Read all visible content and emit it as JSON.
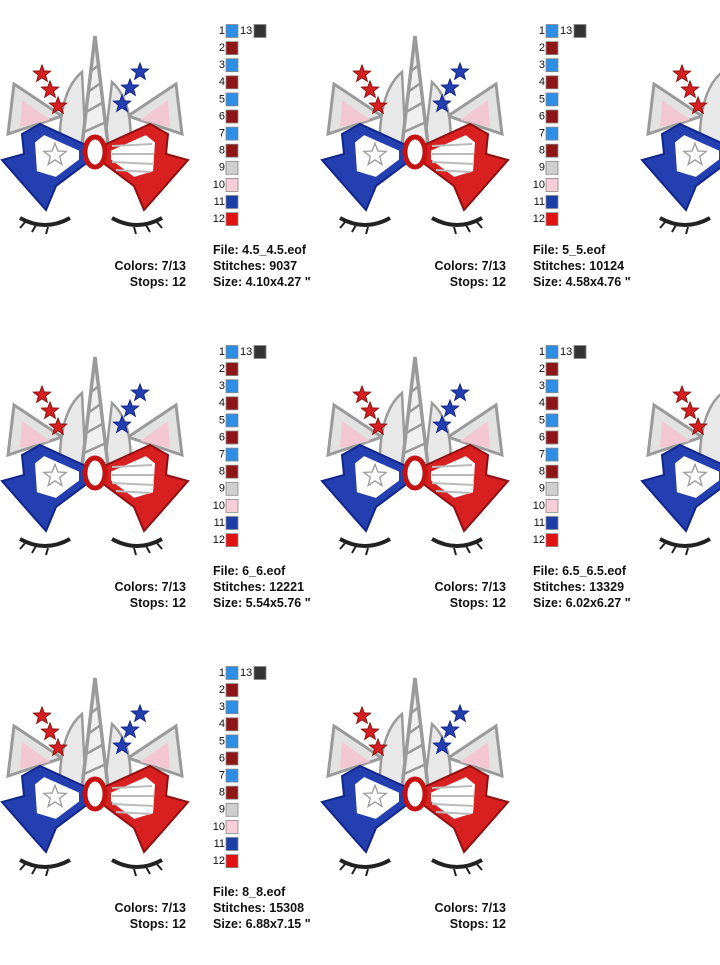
{
  "palette": [
    {
      "number": "1",
      "color": "#2e8de4"
    },
    {
      "number": "2",
      "color": "#8e1616"
    },
    {
      "number": "3",
      "color": "#2e8de4"
    },
    {
      "number": "4",
      "color": "#8e1616"
    },
    {
      "number": "5",
      "color": "#2e8de4"
    },
    {
      "number": "6",
      "color": "#8e1616"
    },
    {
      "number": "7",
      "color": "#2e8de4"
    },
    {
      "number": "8",
      "color": "#8e1616"
    },
    {
      "number": "9",
      "color": "#cfcfcf"
    },
    {
      "number": "10",
      "color": "#f6cdd9"
    },
    {
      "number": "11",
      "color": "#1c3fa6"
    },
    {
      "number": "12",
      "color": "#e21212"
    }
  ],
  "extra": {
    "number": "13",
    "color": "#333333"
  },
  "designs": [
    {
      "colors": "Colors: 7/13",
      "stops": "Stops: 12",
      "file": "File: 4.5_4.5.eof",
      "stitches": "Stitches: 9037",
      "size": "Size: 4.10x4.27 \""
    },
    {
      "colors": "Colors: 7/13",
      "stops": "Stops: 12",
      "file": "File: 5_5.eof",
      "stitches": "Stitches: 10124",
      "size": "Size: 4.58x4.76 \""
    },
    {
      "colors": "Colors: 7/13",
      "stops": "Stops: 12",
      "file": "File: 6_6.eof",
      "stitches": "Stitches: 12221",
      "size": "Size: 5.54x5.76 \""
    },
    {
      "colors": "Colors: 7/13",
      "stops": "Stops: 12",
      "file": "File: 6.5_6.5.eof",
      "stitches": "Stitches: 13329",
      "size": "Size: 6.02x6.27 \""
    },
    {
      "colors": "Colors: 7/13",
      "stops": "Stops: 12",
      "file": "File: 8_8.eof",
      "stitches": "Stitches: 15308",
      "size": "Size: 6.88x7.15 \""
    },
    {
      "colors": "Colors: 7/13",
      "stops": "Stops: 12"
    }
  ]
}
